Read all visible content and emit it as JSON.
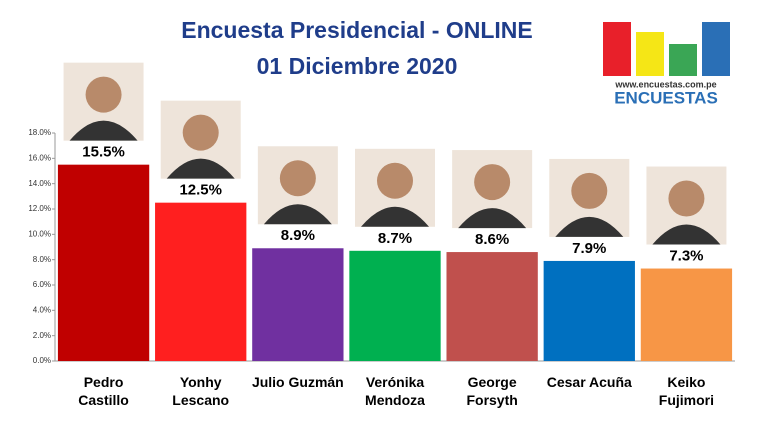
{
  "chart_data": {
    "type": "bar",
    "title": "Encuesta Presidencial - ONLINE",
    "subtitle": "01 Diciembre 2020",
    "logo_url": "www.encuestas.com.pe",
    "logo_name": "ENCUESTAS",
    "categories": [
      "Pedro Castillo",
      "Yonhy Lescano",
      "Julio Guzmán",
      "Verónika Mendoza",
      "George Forsyth",
      "Cesar Acuña",
      "Keiko Fujimori"
    ],
    "values": [
      15.5,
      12.5,
      8.9,
      8.7,
      8.6,
      7.9,
      7.3
    ],
    "value_labels": [
      "15.5%",
      "12.5%",
      "8.9%",
      "8.7%",
      "8.6%",
      "7.9%",
      "7.3%"
    ],
    "colors": [
      "#c00000",
      "#ff1f1f",
      "#7030a0",
      "#00b050",
      "#c0504d",
      "#0070c0",
      "#f79646"
    ],
    "ylim": [
      0,
      18
    ],
    "yticks": [
      {
        "value": 0,
        "label": "0.0%"
      },
      {
        "value": 2,
        "label": "2.0%"
      },
      {
        "value": 4,
        "label": "4.0%"
      },
      {
        "value": 6,
        "label": "6.0%"
      },
      {
        "value": 8,
        "label": "8.0%"
      },
      {
        "value": 10,
        "label": "10.0%"
      },
      {
        "value": 12,
        "label": "12.0%"
      },
      {
        "value": 14,
        "label": "14.0%"
      },
      {
        "value": 16,
        "label": "16.0%"
      },
      {
        "value": 18,
        "label": "18.0%"
      }
    ]
  }
}
